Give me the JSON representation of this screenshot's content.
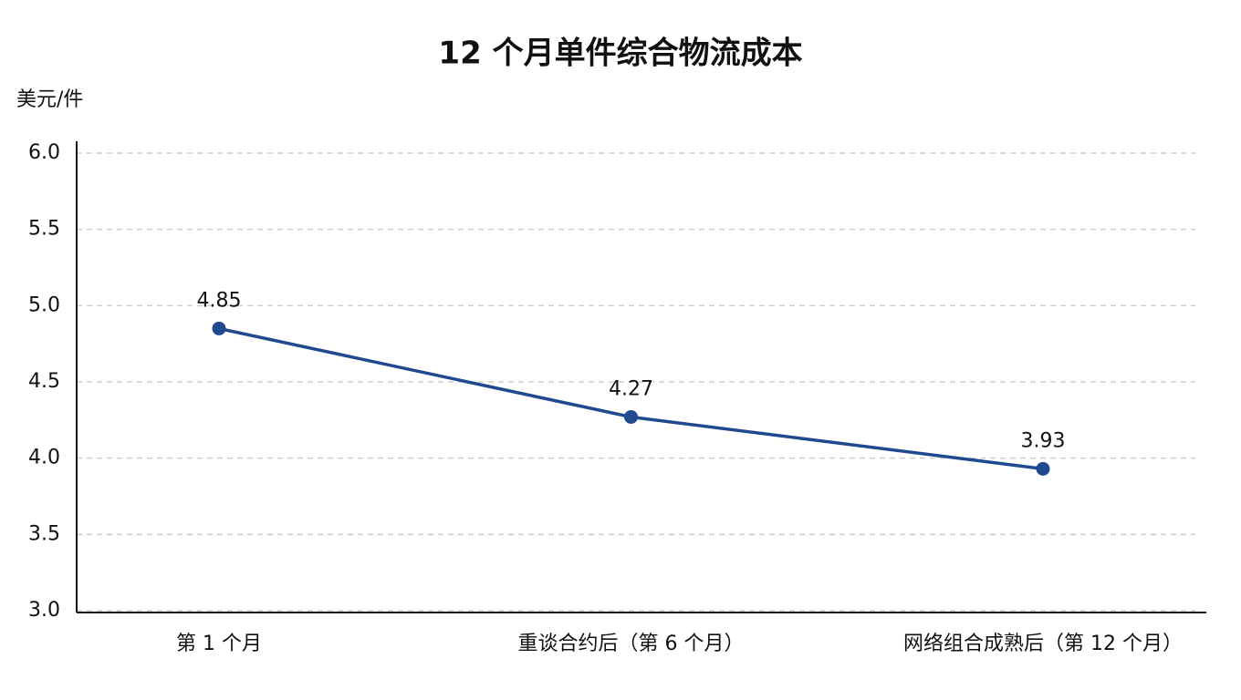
{
  "chart_data": {
    "type": "line",
    "title": "12 个月单件综合物流成本",
    "y_label": "美元/件",
    "categories": [
      "第 1 个月",
      "重谈合约后（第 6 个月）",
      "网络组合成熟后（第 12 个月）"
    ],
    "series": [
      {
        "name": "单件综合物流成本",
        "color": "#1f4a8f",
        "values": [
          4.85,
          4.27,
          3.93
        ]
      }
    ],
    "ylim": [
      3.0,
      6.0
    ],
    "yticks": [
      {
        "value": 3,
        "label": "3.0"
      },
      3.5,
      {
        "value": 4,
        "label": "4.0"
      },
      4.5,
      {
        "value": 5,
        "label": "5.0"
      },
      5.5,
      {
        "value": 6,
        "label": "6.0"
      }
    ],
    "grid": true
  }
}
